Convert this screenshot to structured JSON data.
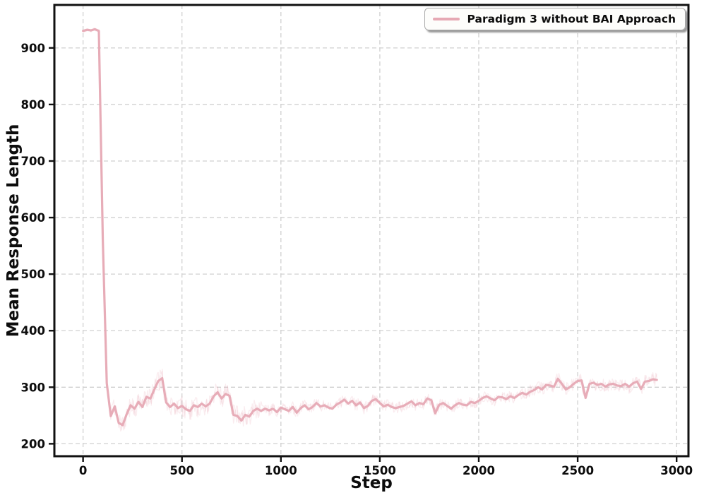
{
  "chart_data": {
    "type": "line",
    "title": "",
    "xlabel": "Step",
    "ylabel": "Mean Response Length",
    "xlim": [
      -145,
      3060
    ],
    "ylim": [
      178,
      976
    ],
    "xticks": [
      0,
      500,
      1000,
      1500,
      2000,
      2500,
      3000
    ],
    "yticks": [
      200,
      300,
      400,
      500,
      600,
      700,
      800,
      900
    ],
    "grid": true,
    "legend_position": "upper right",
    "series": [
      {
        "name": "Paradigm 3 without BAI Approach",
        "color": "#e6a9b4",
        "x": [
          0,
          20,
          40,
          60,
          80,
          100,
          120,
          140,
          160,
          180,
          200,
          220,
          240,
          260,
          280,
          300,
          320,
          340,
          360,
          380,
          400,
          420,
          440,
          460,
          480,
          500,
          520,
          540,
          560,
          580,
          600,
          620,
          640,
          660,
          680,
          700,
          720,
          740,
          760,
          780,
          800,
          820,
          840,
          860,
          880,
          900,
          920,
          940,
          960,
          980,
          1000,
          1020,
          1040,
          1060,
          1080,
          1100,
          1120,
          1140,
          1160,
          1180,
          1200,
          1220,
          1240,
          1260,
          1280,
          1300,
          1320,
          1340,
          1360,
          1380,
          1400,
          1420,
          1440,
          1460,
          1480,
          1500,
          1520,
          1540,
          1560,
          1580,
          1600,
          1620,
          1640,
          1660,
          1680,
          1700,
          1720,
          1740,
          1760,
          1780,
          1800,
          1820,
          1840,
          1860,
          1880,
          1900,
          1920,
          1940,
          1960,
          1980,
          2000,
          2020,
          2040,
          2060,
          2080,
          2100,
          2120,
          2140,
          2160,
          2180,
          2200,
          2220,
          2240,
          2260,
          2280,
          2300,
          2320,
          2340,
          2360,
          2380,
          2400,
          2420,
          2440,
          2460,
          2480,
          2500,
          2520,
          2540,
          2560,
          2580,
          2600,
          2620,
          2640,
          2660,
          2680,
          2700,
          2720,
          2740,
          2760,
          2780,
          2800,
          2820,
          2840,
          2860,
          2880,
          2900
        ],
        "y": [
          930,
          932,
          931,
          933,
          930,
          560,
          307,
          249,
          266,
          237,
          233,
          252,
          268,
          262,
          274,
          265,
          283,
          280,
          296,
          311,
          316,
          273,
          265,
          271,
          263,
          267,
          261,
          258,
          268,
          265,
          271,
          266,
          271,
          284,
          291,
          280,
          288,
          285,
          251,
          249,
          241,
          251,
          248,
          258,
          262,
          258,
          262,
          259,
          262,
          256,
          264,
          261,
          258,
          265,
          255,
          263,
          268,
          261,
          265,
          272,
          266,
          268,
          264,
          262,
          269,
          273,
          278,
          271,
          276,
          268,
          273,
          263,
          267,
          276,
          279,
          272,
          266,
          269,
          265,
          263,
          265,
          267,
          271,
          275,
          268,
          272,
          270,
          280,
          277,
          254,
          269,
          272,
          267,
          262,
          268,
          272,
          269,
          268,
          274,
          272,
          276,
          281,
          284,
          280,
          277,
          283,
          282,
          279,
          284,
          281,
          286,
          290,
          287,
          292,
          295,
          300,
          296,
          304,
          303,
          301,
          315,
          306,
          296,
          300,
          306,
          311,
          312,
          281,
          306,
          308,
          304,
          306,
          301,
          305,
          306,
          303,
          302,
          306,
          301,
          307,
          310,
          297,
          310,
          311,
          314,
          313
        ],
        "raw_band": {
          "opacity": 0.22,
          "amplitude_schedule": [
            {
              "until": 85,
              "amp": 3
            },
            {
              "until": 115,
              "amp": 8
            },
            {
              "until": 900,
              "amp": 18
            },
            {
              "until": 2250,
              "amp": 10
            },
            {
              "until": 2900,
              "amp": 12
            }
          ]
        }
      }
    ]
  },
  "style": {
    "frame_color": "#111111",
    "grid_color": "#d0d0d0",
    "tick_label_color": "#0d0d0d",
    "background": "#ffffff",
    "legend_bg": "#fdfdfb",
    "legend_border": "#ababab"
  }
}
